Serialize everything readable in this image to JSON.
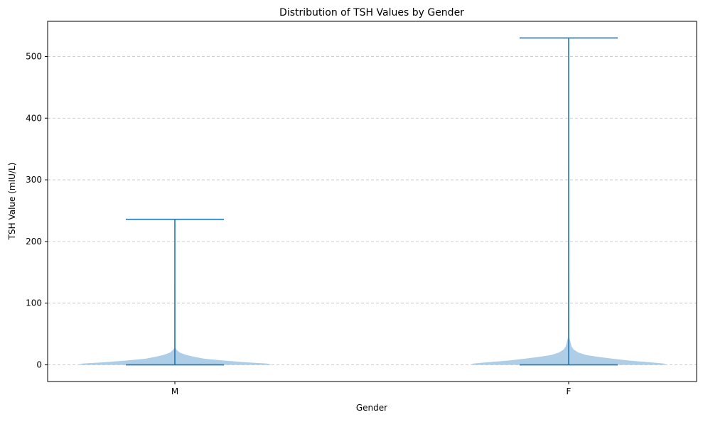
{
  "chart_data": {
    "type": "violin",
    "title": "Distribution of TSH Values by Gender",
    "xlabel": "Gender",
    "ylabel": "TSH Value (mIU/L)",
    "ylim": [
      -27,
      557
    ],
    "yticks": [
      0,
      100,
      200,
      300,
      400,
      500
    ],
    "grid": "y-dashed",
    "color": "#1f77b4",
    "fill_color": "#aecde6",
    "categories": [
      "M",
      "F"
    ],
    "series": [
      {
        "category": "M",
        "min": 0.005,
        "max": 236,
        "density_profile": [
          [
            0,
            1.0
          ],
          [
            2,
            0.95
          ],
          [
            4,
            0.75
          ],
          [
            7,
            0.5
          ],
          [
            10,
            0.3
          ],
          [
            13,
            0.2
          ],
          [
            16,
            0.12
          ],
          [
            20,
            0.05
          ],
          [
            24,
            0.02
          ],
          [
            28,
            0.005
          ],
          [
            236,
            0.002
          ]
        ]
      },
      {
        "category": "F",
        "min": 0.005,
        "max": 530,
        "density_profile": [
          [
            0,
            1.0
          ],
          [
            2,
            0.98
          ],
          [
            4,
            0.85
          ],
          [
            7,
            0.62
          ],
          [
            10,
            0.45
          ],
          [
            13,
            0.3
          ],
          [
            16,
            0.18
          ],
          [
            20,
            0.1
          ],
          [
            25,
            0.05
          ],
          [
            30,
            0.03
          ],
          [
            36,
            0.02
          ],
          [
            45,
            0.006
          ],
          [
            530,
            0.002
          ]
        ]
      }
    ]
  }
}
